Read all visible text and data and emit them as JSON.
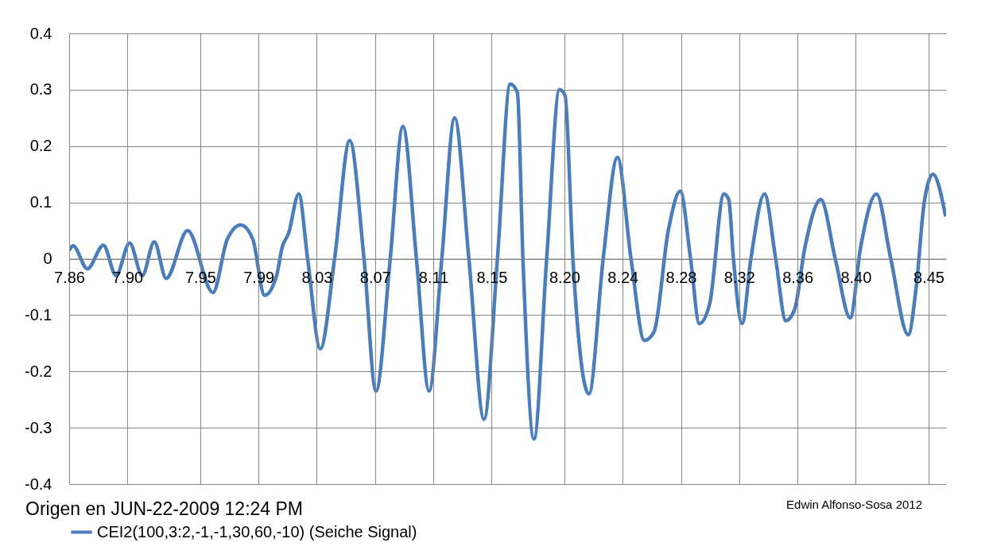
{
  "chart_data": {
    "type": "line",
    "x": [
      7.86,
      7.8627,
      7.8725,
      7.8835,
      7.8922,
      7.9015,
      7.9102,
      7.9184,
      7.9266,
      7.9413,
      7.9587,
      7.9686,
      7.9778,
      7.986,
      7.9942,
      8.0024,
      8.0062,
      8.0106,
      8.0176,
      8.0237,
      8.0324,
      8.0422,
      8.0526,
      8.0624,
      8.0706,
      8.0804,
      8.0891,
      8.0984,
      8.1071,
      8.1158,
      8.1246,
      8.1344,
      8.1448,
      8.154,
      8.1628,
      8.1677,
      8.1715,
      8.1791,
      8.1878,
      8.1966,
      8.2004,
      8.2058,
      8.2168,
      8.2266,
      8.2364,
      8.2457,
      8.2549,
      8.2615,
      8.2713,
      8.2795,
      8.2866,
      8.2926,
      8.2997,
      8.3095,
      8.3128,
      8.316,
      8.322,
      8.328,
      8.3373,
      8.345,
      8.352,
      8.358,
      8.3651,
      8.376,
      8.3859,
      8.3962,
      8.4033,
      8.4142,
      8.424,
      8.436,
      8.4415,
      8.447,
      8.453,
      8.4617
    ],
    "series": [
      {
        "name": "CEI2(100,3:2,-1,-1,30,60,-10) (Seiche Signal)",
        "color": "#4a7ebb",
        "values": [
          0.015,
          0.023,
          -0.018,
          0.024,
          -0.03,
          0.028,
          -0.03,
          0.03,
          -0.035,
          0.05,
          -0.06,
          0.035,
          0.06,
          0.035,
          -0.065,
          -0.03,
          0.02,
          0.045,
          0.115,
          0.0,
          -0.16,
          0.0,
          0.21,
          0.0,
          -0.235,
          0.0,
          0.235,
          0.0,
          -0.235,
          0.0,
          0.25,
          0.0,
          -0.285,
          0.0,
          0.31,
          0.295,
          0.0,
          -0.32,
          0.0,
          0.3,
          0.29,
          0.0,
          -0.24,
          0.0,
          0.18,
          0.0,
          -0.145,
          -0.13,
          0.05,
          0.12,
          0.0,
          -0.115,
          -0.08,
          0.115,
          0.105,
          0.0,
          -0.115,
          0.0,
          0.115,
          0.0,
          -0.11,
          -0.09,
          0.02,
          0.105,
          0.0,
          -0.105,
          0.02,
          0.115,
          0.0,
          -0.135,
          -0.05,
          0.1,
          0.15,
          0.075
        ]
      }
    ],
    "xlim": [
      7.86,
      8.462
    ],
    "xticks": [
      {
        "value": 7.86,
        "label": "7.86"
      },
      {
        "value": 7.9,
        "label": "7.90"
      },
      {
        "value": 7.95,
        "label": "7.95"
      },
      {
        "value": 7.99,
        "label": "7.99"
      },
      {
        "value": 8.03,
        "label": "8.03"
      },
      {
        "value": 8.07,
        "label": "8.07"
      },
      {
        "value": 8.11,
        "label": "8.11"
      },
      {
        "value": 8.15,
        "label": "8.15"
      },
      {
        "value": 8.2,
        "label": "8.20"
      },
      {
        "value": 8.24,
        "label": "8.24"
      },
      {
        "value": 8.28,
        "label": "8.28"
      },
      {
        "value": 8.32,
        "label": "8.32"
      },
      {
        "value": 8.36,
        "label": "8.36"
      },
      {
        "value": 8.4,
        "label": "8.40"
      },
      {
        "value": 8.45,
        "label": "8.45"
      }
    ],
    "ylim": [
      -0.4,
      0.4
    ],
    "yticks": [
      {
        "value": -0.4,
        "label": "-0.4"
      },
      {
        "value": -0.3,
        "label": "-0.3"
      },
      {
        "value": -0.2,
        "label": "-0.2"
      },
      {
        "value": -0.1,
        "label": "-0.1"
      },
      {
        "value": 0,
        "label": "0"
      },
      {
        "value": 0.1,
        "label": "0.1"
      },
      {
        "value": 0.2,
        "label": "0.2"
      },
      {
        "value": 0.3,
        "label": "0.3"
      },
      {
        "value": 0.4,
        "label": "0.4"
      }
    ],
    "annotations": [
      "Origen en JUN-22-2009 12:24 PM",
      "Edwin Alfonso-Sosa 2012"
    ],
    "grid": true,
    "legend": "bottom",
    "marker": "none",
    "line_style": "solid"
  }
}
